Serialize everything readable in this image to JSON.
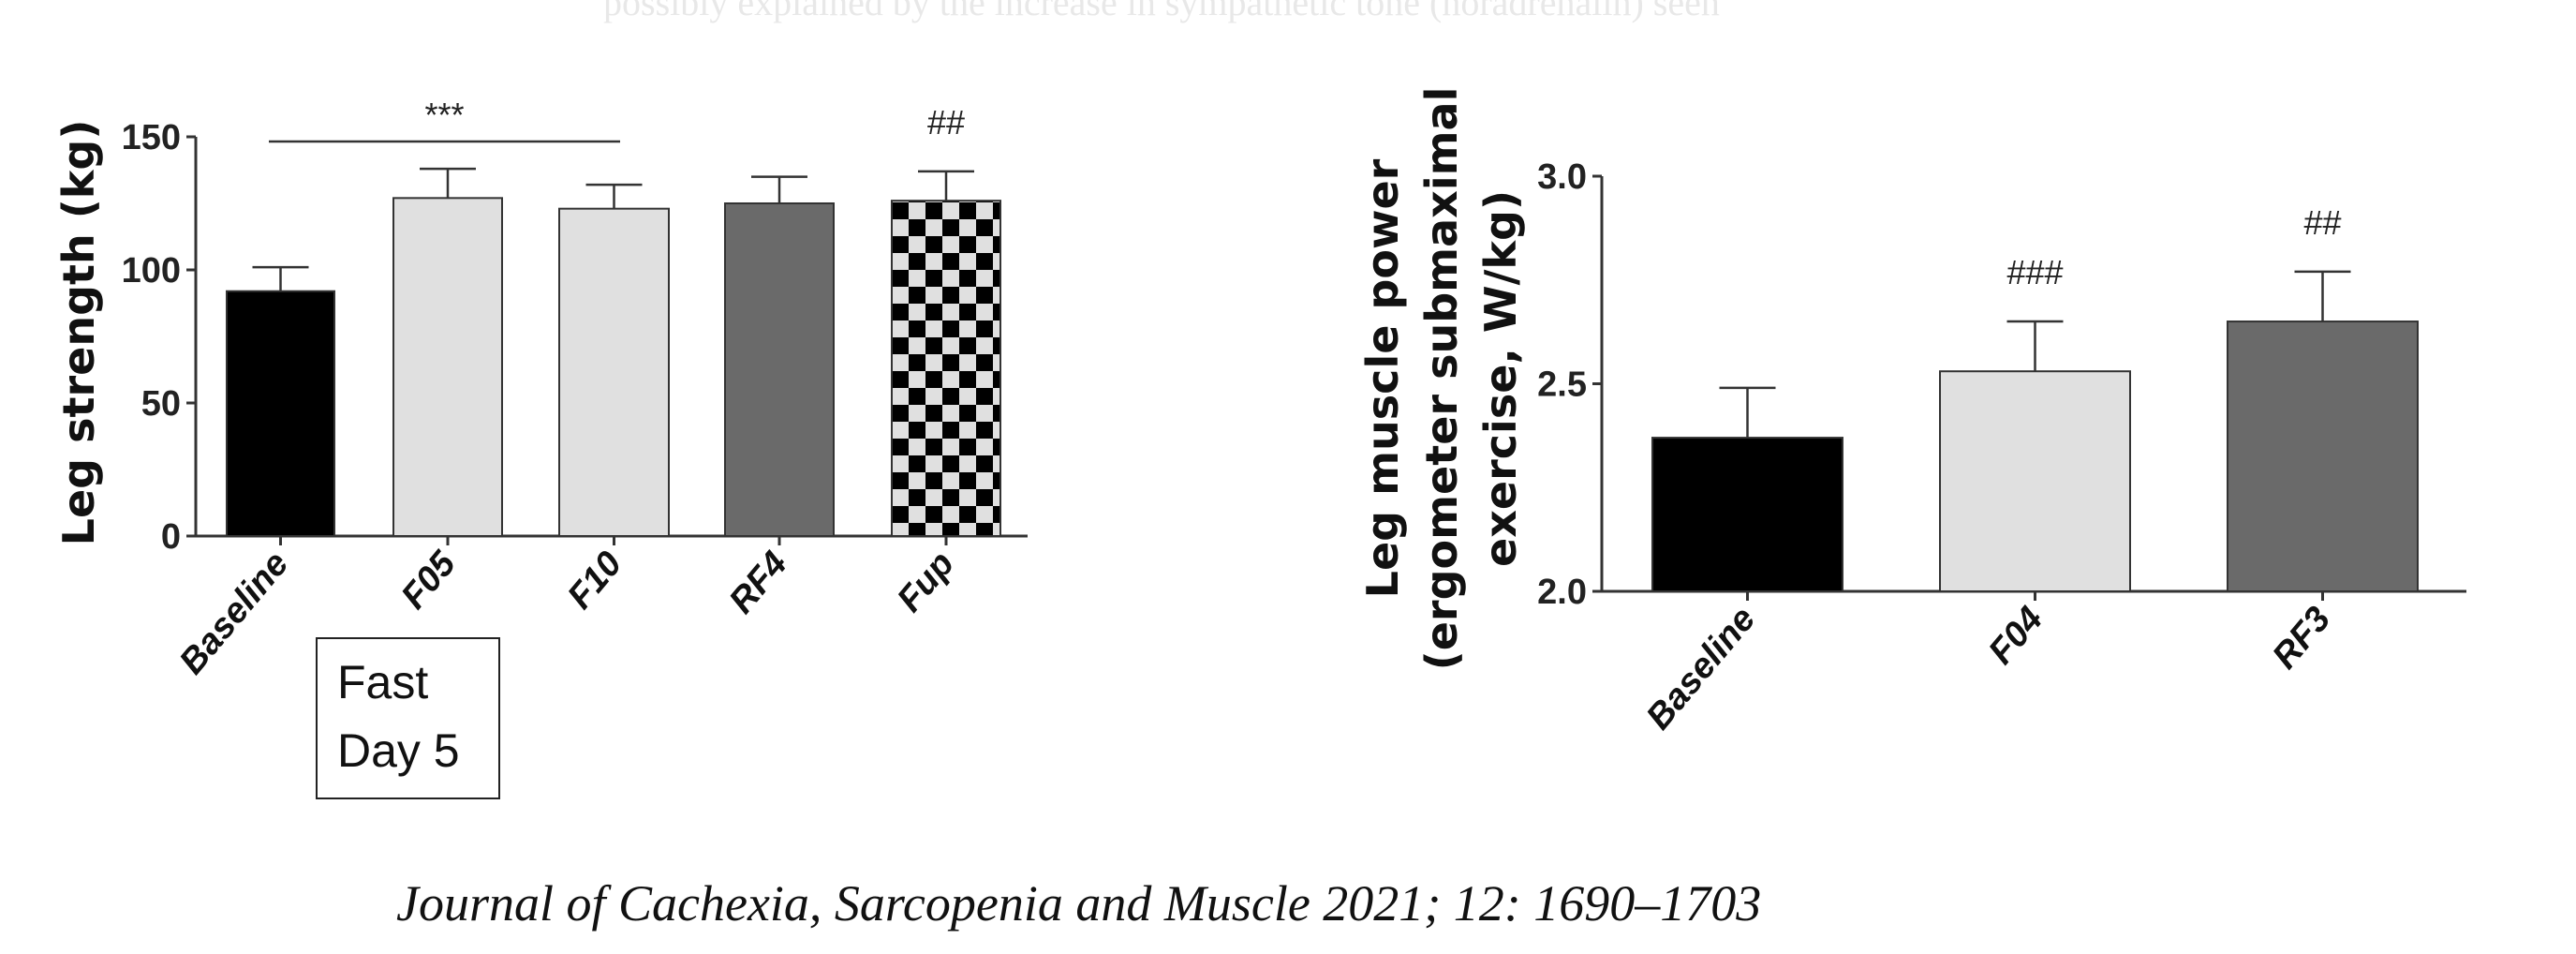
{
  "faint_text": "possibly explained by the increase in sympathetic tone (noradrenalin) seen",
  "caption": "Journal of Cachexia, Sarcopenia and Muscle 2021; 12: 1690–1703",
  "annotation_box": {
    "line1": "Fast",
    "line2": "Day 5"
  },
  "chart_data": [
    {
      "type": "bar",
      "ylabel": "Leg strength (kg)",
      "xlabel": "",
      "ylim": [
        0,
        150
      ],
      "yticks": [
        "0",
        "50",
        "100",
        "150"
      ],
      "ytick_values": [
        0,
        50,
        100,
        150
      ],
      "categories": [
        "Baseline",
        "F05",
        "F10",
        "RF4",
        "Fup"
      ],
      "values": [
        92,
        127,
        123,
        125,
        126
      ],
      "error_upper": [
        101,
        138,
        132,
        135,
        137
      ],
      "fills": [
        "#000000",
        "#e0e0e0",
        "#e0e0e0",
        "#6a6a6a",
        "checker"
      ],
      "annotations": [
        {
          "text": "***",
          "type": "bracket",
          "from": "Baseline",
          "to": "F10"
        },
        {
          "text": "##",
          "category": "Fup"
        }
      ]
    },
    {
      "type": "bar",
      "ylabel": "Leg muscle power",
      "ylabel_line2": "(ergometer submaximal",
      "ylabel_line3": "exercise, W/kg)",
      "ylim": [
        2.0,
        3.0
      ],
      "yticks": [
        "2.0",
        "2.5",
        "3.0"
      ],
      "ytick_values": [
        2.0,
        2.5,
        3.0
      ],
      "categories": [
        "Baseline",
        "F04",
        "RF3"
      ],
      "values": [
        2.37,
        2.53,
        2.65
      ],
      "error_upper": [
        2.49,
        2.65,
        2.77
      ],
      "fills": [
        "#000000",
        "#e0e0e0",
        "#6a6a6a"
      ],
      "annotations": [
        {
          "text": "###",
          "category": "F04"
        },
        {
          "text": "##",
          "category": "RF3"
        }
      ]
    }
  ]
}
